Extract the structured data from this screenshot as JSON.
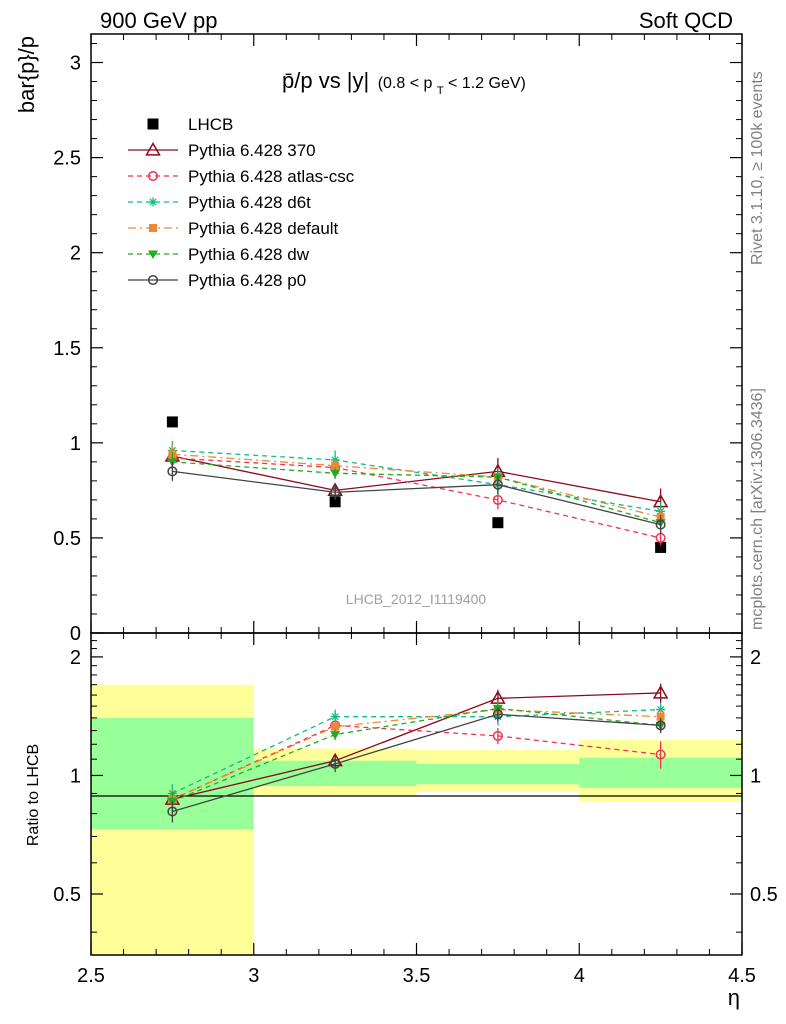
{
  "header": {
    "left": "900 GeV pp",
    "right": "Soft QCD"
  },
  "side_labels": {
    "rivet": "Rivet 3.1.10, ≥ 100k events",
    "mcplots": "mcplots.cern.ch [arXiv:1306.3436]"
  },
  "watermark": "LHCB_2012_I1119400",
  "colors": {
    "data": "#000000",
    "p370": "#8b0a1e",
    "atlas": "#ee3355",
    "d6t": "#11bb88",
    "default": "#ee8833",
    "dw": "#22aa22",
    "p0": "#444444",
    "band_inner": "#99ff99",
    "band_outer": "#ffff99"
  },
  "chart_data": [
    {
      "type": "scatter",
      "title_main": "p̄/p vs |y|",
      "title_cut": "(0.8 < p",
      "title_cut_sub": "T",
      "title_cut_end": " < 1.2 GeV)",
      "ylabel": "bar{p}/p",
      "xlim": [
        2.5,
        4.5
      ],
      "ylim": [
        0,
        3.15
      ],
      "yticks": [
        0,
        0.5,
        1,
        1.5,
        2,
        2.5,
        3
      ],
      "ytick_labels": [
        "0",
        "0.5",
        "1",
        "1.5",
        "2",
        "2.5",
        "3"
      ],
      "legend_position": "top-left",
      "x": [
        2.75,
        3.25,
        3.75,
        4.25
      ],
      "series": [
        {
          "key": "data",
          "name": "LHCB",
          "marker": "square-filled",
          "line": "none",
          "values": [
            1.11,
            0.69,
            0.58,
            0.45
          ]
        },
        {
          "key": "p370",
          "name": "Pythia 6.428 370",
          "marker": "triangle-open",
          "line": "solid",
          "values": [
            0.93,
            0.75,
            0.85,
            0.69
          ],
          "err": [
            0.06,
            0.03,
            0.07,
            0.07
          ]
        },
        {
          "key": "atlas",
          "name": "Pythia 6.428 atlas-csc",
          "marker": "circle-open",
          "line": "dashed",
          "values": [
            0.92,
            0.87,
            0.7,
            0.5
          ],
          "err": [
            0.05,
            0.03,
            0.05,
            0.04
          ]
        },
        {
          "key": "d6t",
          "name": "Pythia 6.428 d6t",
          "marker": "star",
          "line": "dashed",
          "values": [
            0.96,
            0.91,
            0.78,
            0.64
          ],
          "err": [
            0.05,
            0.05,
            0.06,
            0.05
          ]
        },
        {
          "key": "default",
          "name": "Pythia 6.428 default",
          "marker": "square-filled",
          "line": "dashdot",
          "values": [
            0.94,
            0.88,
            0.82,
            0.61
          ],
          "err": [
            0.05,
            0.03,
            0.04,
            0.04
          ]
        },
        {
          "key": "dw",
          "name": "Pythia 6.428 dw",
          "marker": "triangle-down-filled",
          "line": "dashed",
          "values": [
            0.9,
            0.84,
            0.82,
            0.58
          ],
          "err": [
            0.05,
            0.03,
            0.05,
            0.04
          ]
        },
        {
          "key": "p0",
          "name": "Pythia 6.428 p0",
          "marker": "circle-open",
          "line": "solid",
          "values": [
            0.85,
            0.74,
            0.78,
            0.57
          ],
          "err": [
            0.05,
            0.04,
            0.05,
            0.05
          ]
        }
      ]
    },
    {
      "type": "scatter",
      "ylabel": "Ratio to LHCB",
      "xlabel": "η",
      "xlim": [
        2.5,
        4.5
      ],
      "ylim": [
        0.35,
        2.3
      ],
      "xticks": [
        2.5,
        3,
        3.5,
        4,
        4.5
      ],
      "xtick_labels": [
        "2.5",
        "3",
        "3.5",
        "4",
        "4.5"
      ],
      "yticks": [
        0.5,
        1,
        2
      ],
      "ytick_labels": [
        "0.5",
        "1",
        "2"
      ],
      "bands": [
        {
          "x": [
            2.5,
            3.0
          ],
          "inner": [
            0.73,
            1.4
          ],
          "outer": [
            0.35,
            1.7
          ]
        },
        {
          "x": [
            3.0,
            3.5
          ],
          "inner": [
            0.94,
            1.09
          ],
          "outer": [
            0.89,
            1.17
          ]
        },
        {
          "x": [
            3.5,
            4.0
          ],
          "inner": [
            0.95,
            1.07
          ],
          "outer": [
            0.91,
            1.16
          ]
        },
        {
          "x": [
            4.0,
            4.5
          ],
          "inner": [
            0.93,
            1.11
          ],
          "outer": [
            0.86,
            1.23
          ]
        }
      ],
      "x": [
        2.75,
        3.25,
        3.75,
        4.25
      ],
      "series": [
        {
          "key": "p370",
          "name": "Pythia 6.428 370",
          "values": [
            0.87,
            1.09,
            1.57,
            1.62
          ],
          "err": [
            0.05,
            0.04,
            0.08,
            0.09
          ]
        },
        {
          "key": "atlas",
          "name": "Pythia 6.428 atlas-csc",
          "values": [
            0.87,
            1.34,
            1.26,
            1.13
          ],
          "err": [
            0.05,
            0.04,
            0.06,
            0.09
          ]
        },
        {
          "key": "d6t",
          "name": "Pythia 6.428 d6t",
          "values": [
            0.9,
            1.41,
            1.41,
            1.47
          ],
          "err": [
            0.05,
            0.06,
            0.07,
            0.06
          ]
        },
        {
          "key": "default",
          "name": "Pythia 6.428 default",
          "values": [
            0.87,
            1.33,
            1.47,
            1.41
          ],
          "err": [
            0.05,
            0.04,
            0.06,
            0.06
          ]
        },
        {
          "key": "dw",
          "name": "Pythia 6.428 dw",
          "values": [
            0.86,
            1.27,
            1.48,
            1.34
          ],
          "err": [
            0.05,
            0.04,
            0.06,
            0.05
          ]
        },
        {
          "key": "p0",
          "name": "Pythia 6.428 p0",
          "values": [
            0.81,
            1.07,
            1.43,
            1.34
          ],
          "err": [
            0.05,
            0.05,
            0.06,
            0.06
          ]
        }
      ]
    }
  ]
}
